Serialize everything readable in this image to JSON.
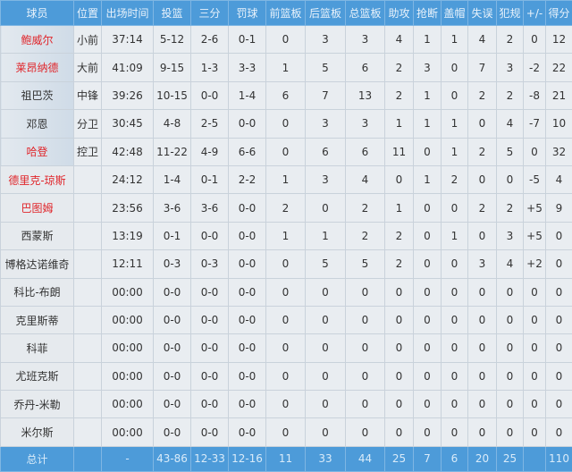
{
  "headers": [
    "球员",
    "位置",
    "出场时间",
    "投篮",
    "三分",
    "罚球",
    "前篮板",
    "后篮板",
    "总篮板",
    "助攻",
    "抢断",
    "盖帽",
    "失误",
    "犯规",
    "+/-",
    "得分"
  ],
  "colors": {
    "header_bg": "#4d9bd9",
    "highlight_name": "#e0262b",
    "body_bg": "#e9edf1"
  },
  "players": [
    {
      "name": "鲍威尔",
      "highlight": true,
      "starter": true,
      "stats": [
        "小前",
        "37:14",
        "5-12",
        "2-6",
        "0-1",
        "0",
        "3",
        "3",
        "4",
        "1",
        "1",
        "4",
        "2",
        "0",
        "12"
      ]
    },
    {
      "name": "莱昂纳德",
      "highlight": true,
      "starter": true,
      "stats": [
        "大前",
        "41:09",
        "9-15",
        "1-3",
        "3-3",
        "1",
        "5",
        "6",
        "2",
        "3",
        "0",
        "7",
        "3",
        "-2",
        "22"
      ]
    },
    {
      "name": "祖巴茨",
      "highlight": false,
      "starter": true,
      "stats": [
        "中锋",
        "39:26",
        "10-15",
        "0-0",
        "1-4",
        "6",
        "7",
        "13",
        "2",
        "1",
        "0",
        "2",
        "2",
        "-8",
        "21"
      ]
    },
    {
      "name": "邓恩",
      "highlight": false,
      "starter": true,
      "stats": [
        "分卫",
        "30:45",
        "4-8",
        "2-5",
        "0-0",
        "0",
        "3",
        "3",
        "1",
        "1",
        "1",
        "0",
        "4",
        "-7",
        "10"
      ]
    },
    {
      "name": "哈登",
      "highlight": true,
      "starter": true,
      "stats": [
        "控卫",
        "42:48",
        "11-22",
        "4-9",
        "6-6",
        "0",
        "6",
        "6",
        "11",
        "0",
        "1",
        "2",
        "5",
        "0",
        "32"
      ]
    },
    {
      "name": "德里克-琼斯",
      "highlight": true,
      "starter": false,
      "stats": [
        "",
        "24:12",
        "1-4",
        "0-1",
        "2-2",
        "1",
        "3",
        "4",
        "0",
        "1",
        "2",
        "0",
        "0",
        "-5",
        "4"
      ]
    },
    {
      "name": "巴图姆",
      "highlight": true,
      "starter": false,
      "stats": [
        "",
        "23:56",
        "3-6",
        "3-6",
        "0-0",
        "2",
        "0",
        "2",
        "1",
        "0",
        "0",
        "2",
        "2",
        "+5",
        "9"
      ]
    },
    {
      "name": "西蒙斯",
      "highlight": false,
      "starter": false,
      "stats": [
        "",
        "13:19",
        "0-1",
        "0-0",
        "0-0",
        "1",
        "1",
        "2",
        "2",
        "0",
        "1",
        "0",
        "3",
        "+5",
        "0"
      ]
    },
    {
      "name": "博格达诺维奇",
      "highlight": false,
      "starter": false,
      "stats": [
        "",
        "12:11",
        "0-3",
        "0-3",
        "0-0",
        "0",
        "5",
        "5",
        "2",
        "0",
        "0",
        "3",
        "4",
        "+2",
        "0"
      ]
    },
    {
      "name": "科比-布朗",
      "highlight": false,
      "starter": false,
      "stats": [
        "",
        "00:00",
        "0-0",
        "0-0",
        "0-0",
        "0",
        "0",
        "0",
        "0",
        "0",
        "0",
        "0",
        "0",
        "0",
        "0"
      ]
    },
    {
      "name": "克里斯蒂",
      "highlight": false,
      "starter": false,
      "stats": [
        "",
        "00:00",
        "0-0",
        "0-0",
        "0-0",
        "0",
        "0",
        "0",
        "0",
        "0",
        "0",
        "0",
        "0",
        "0",
        "0"
      ]
    },
    {
      "name": "科菲",
      "highlight": false,
      "starter": false,
      "stats": [
        "",
        "00:00",
        "0-0",
        "0-0",
        "0-0",
        "0",
        "0",
        "0",
        "0",
        "0",
        "0",
        "0",
        "0",
        "0",
        "0"
      ]
    },
    {
      "name": "尤班克斯",
      "highlight": false,
      "starter": false,
      "stats": [
        "",
        "00:00",
        "0-0",
        "0-0",
        "0-0",
        "0",
        "0",
        "0",
        "0",
        "0",
        "0",
        "0",
        "0",
        "0",
        "0"
      ]
    },
    {
      "name": "乔丹-米勒",
      "highlight": false,
      "starter": false,
      "stats": [
        "",
        "00:00",
        "0-0",
        "0-0",
        "0-0",
        "0",
        "0",
        "0",
        "0",
        "0",
        "0",
        "0",
        "0",
        "0",
        "0"
      ]
    },
    {
      "name": "米尔斯",
      "highlight": false,
      "starter": false,
      "stats": [
        "",
        "00:00",
        "0-0",
        "0-0",
        "0-0",
        "0",
        "0",
        "0",
        "0",
        "0",
        "0",
        "0",
        "0",
        "0",
        "0"
      ]
    }
  ],
  "totals": {
    "label": "总计",
    "stats": [
      "",
      "-",
      "43-86",
      "12-33",
      "12-16",
      "11",
      "33",
      "44",
      "25",
      "7",
      "6",
      "20",
      "25",
      "",
      "110"
    ]
  }
}
